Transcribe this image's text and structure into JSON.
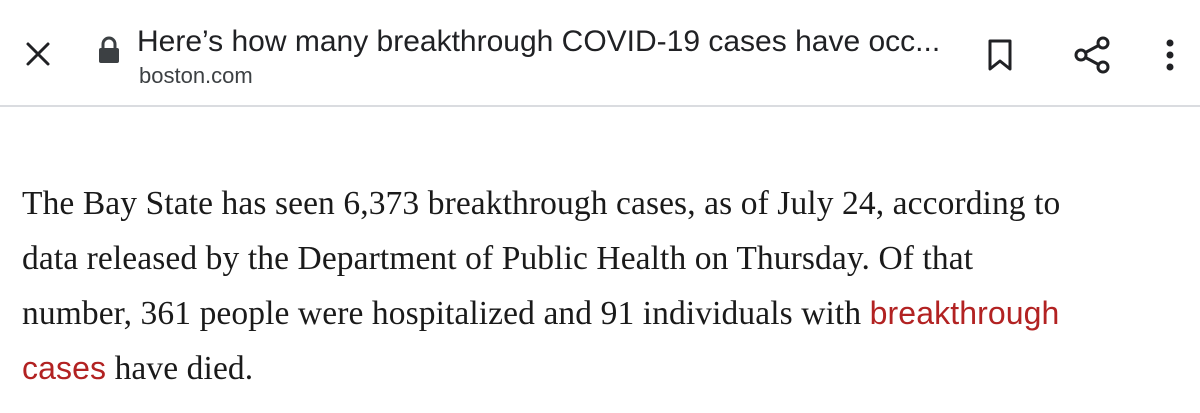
{
  "toolbar": {
    "page_title": "Here’s how many breakthrough COVID-19 cases have occ...",
    "domain": "boston.com",
    "icons": {
      "close": "close-icon",
      "lock": "lock-icon",
      "bookmark": "bookmark-icon",
      "share": "share-icon",
      "menu": "more-vert-icon"
    }
  },
  "article": {
    "line1": "The Bay State has seen 6,373 breakthrough cases, as of July 24, according to",
    "line2": "data released by the Department of Public Health on Thursday. Of that",
    "line3_text": "number, 361 people were hospitalized and 91 individuals with ",
    "link_part1": "breakthrough",
    "link_part2": "cases",
    "line4_text": " have died."
  },
  "colors": {
    "link": "#b22222",
    "text": "#1a1a1a",
    "divider": "#dadce0"
  }
}
